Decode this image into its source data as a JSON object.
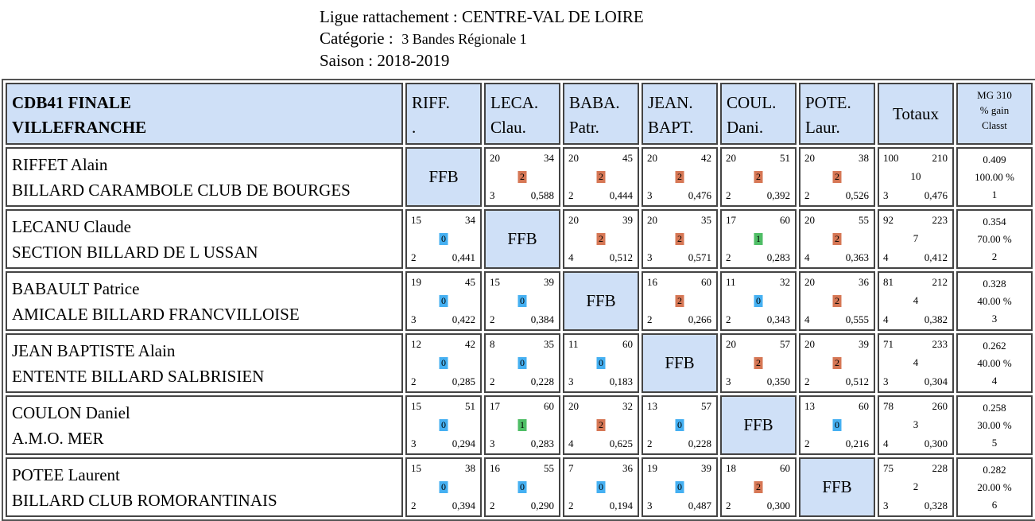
{
  "header": {
    "ligue_label": "Ligue rattachement :",
    "ligue_value": "CENTRE-VAL DE LOIRE",
    "categorie_label": "Catégorie :",
    "categorie_value": "3 Bandes Régionale 1",
    "saison_label": "Saison :",
    "saison_value": "2018-2019"
  },
  "table": {
    "corner_line1": "CDB41 FINALE",
    "corner_line2": "VILLEFRANCHE",
    "columns": [
      {
        "l1": "RIFF.",
        "l2": "."
      },
      {
        "l1": "LECA.",
        "l2": "Clau."
      },
      {
        "l1": "BABA.",
        "l2": "Patr."
      },
      {
        "l1": "JEAN.",
        "l2": "BAPT."
      },
      {
        "l1": "COUL.",
        "l2": "Dani."
      },
      {
        "l1": "POTE.",
        "l2": "Laur."
      }
    ],
    "totals_header": "Totaux",
    "mg_header": {
      "l1": "MG 310",
      "l2": "% gain",
      "l3": "Classt"
    },
    "ffb_label": "FFB",
    "rows": [
      {
        "name": "RIFFET Alain",
        "club": "BILLARD CARAMBOLE CLUB DE BOURGES",
        "cells": [
          null,
          {
            "tl": "20",
            "tr": "34",
            "pts": "2",
            "bl": "3",
            "br": "0,588"
          },
          {
            "tl": "20",
            "tr": "45",
            "pts": "2",
            "bl": "2",
            "br": "0,444"
          },
          {
            "tl": "20",
            "tr": "42",
            "pts": "2",
            "bl": "3",
            "br": "0,476"
          },
          {
            "tl": "20",
            "tr": "51",
            "pts": "2",
            "bl": "2",
            "br": "0,392"
          },
          {
            "tl": "20",
            "tr": "38",
            "pts": "2",
            "bl": "2",
            "br": "0,526"
          }
        ],
        "totals": {
          "tl": "100",
          "tr": "210",
          "mid": "10",
          "bl": "3",
          "br": "0,476"
        },
        "mg": {
          "avg": "0.409",
          "pct": "100.00 %",
          "rank": "1"
        }
      },
      {
        "name": "LECANU Claude",
        "club": "SECTION BILLARD DE L USSAN",
        "cells": [
          {
            "tl": "15",
            "tr": "34",
            "pts": "0",
            "bl": "2",
            "br": "0,441"
          },
          null,
          {
            "tl": "20",
            "tr": "39",
            "pts": "2",
            "bl": "4",
            "br": "0,512"
          },
          {
            "tl": "20",
            "tr": "35",
            "pts": "2",
            "bl": "3",
            "br": "0,571"
          },
          {
            "tl": "17",
            "tr": "60",
            "pts": "1",
            "bl": "2",
            "br": "0,283"
          },
          {
            "tl": "20",
            "tr": "55",
            "pts": "2",
            "bl": "4",
            "br": "0,363"
          }
        ],
        "totals": {
          "tl": "92",
          "tr": "223",
          "mid": "7",
          "bl": "4",
          "br": "0,412"
        },
        "mg": {
          "avg": "0.354",
          "pct": "70.00 %",
          "rank": "2"
        }
      },
      {
        "name": "BABAULT Patrice",
        "club": "AMICALE BILLARD FRANCVILLOISE",
        "cells": [
          {
            "tl": "19",
            "tr": "45",
            "pts": "0",
            "bl": "3",
            "br": "0,422"
          },
          {
            "tl": "15",
            "tr": "39",
            "pts": "0",
            "bl": "2",
            "br": "0,384"
          },
          null,
          {
            "tl": "16",
            "tr": "60",
            "pts": "2",
            "bl": "2",
            "br": "0,266"
          },
          {
            "tl": "11",
            "tr": "32",
            "pts": "0",
            "bl": "2",
            "br": "0,343"
          },
          {
            "tl": "20",
            "tr": "36",
            "pts": "2",
            "bl": "4",
            "br": "0,555"
          }
        ],
        "totals": {
          "tl": "81",
          "tr": "212",
          "mid": "4",
          "bl": "4",
          "br": "0,382"
        },
        "mg": {
          "avg": "0.328",
          "pct": "40.00 %",
          "rank": "3"
        }
      },
      {
        "name": "JEAN BAPTISTE Alain",
        "club": "ENTENTE BILLARD SALBRISIEN",
        "cells": [
          {
            "tl": "12",
            "tr": "42",
            "pts": "0",
            "bl": "2",
            "br": "0,285"
          },
          {
            "tl": "8",
            "tr": "35",
            "pts": "0",
            "bl": "2",
            "br": "0,228"
          },
          {
            "tl": "11",
            "tr": "60",
            "pts": "0",
            "bl": "3",
            "br": "0,183"
          },
          null,
          {
            "tl": "20",
            "tr": "57",
            "pts": "2",
            "bl": "3",
            "br": "0,350"
          },
          {
            "tl": "20",
            "tr": "39",
            "pts": "2",
            "bl": "2",
            "br": "0,512"
          }
        ],
        "totals": {
          "tl": "71",
          "tr": "233",
          "mid": "4",
          "bl": "3",
          "br": "0,304"
        },
        "mg": {
          "avg": "0.262",
          "pct": "40.00 %",
          "rank": "4"
        }
      },
      {
        "name": "COULON Daniel",
        "club": "A.M.O. MER",
        "cells": [
          {
            "tl": "15",
            "tr": "51",
            "pts": "0",
            "bl": "3",
            "br": "0,294"
          },
          {
            "tl": "17",
            "tr": "60",
            "pts": "1",
            "bl": "3",
            "br": "0,283"
          },
          {
            "tl": "20",
            "tr": "32",
            "pts": "2",
            "bl": "4",
            "br": "0,625"
          },
          {
            "tl": "13",
            "tr": "57",
            "pts": "0",
            "bl": "2",
            "br": "0,228"
          },
          null,
          {
            "tl": "13",
            "tr": "60",
            "pts": "0",
            "bl": "2",
            "br": "0,216"
          }
        ],
        "totals": {
          "tl": "78",
          "tr": "260",
          "mid": "3",
          "bl": "4",
          "br": "0,300"
        },
        "mg": {
          "avg": "0.258",
          "pct": "30.00 %",
          "rank": "5"
        }
      },
      {
        "name": "POTEE Laurent",
        "club": "BILLARD CLUB ROMORANTINAIS",
        "cells": [
          {
            "tl": "15",
            "tr": "38",
            "pts": "0",
            "bl": "2",
            "br": "0,394"
          },
          {
            "tl": "16",
            "tr": "55",
            "pts": "0",
            "bl": "2",
            "br": "0,290"
          },
          {
            "tl": "7",
            "tr": "36",
            "pts": "0",
            "bl": "2",
            "br": "0,194"
          },
          {
            "tl": "19",
            "tr": "39",
            "pts": "0",
            "bl": "3",
            "br": "0,487"
          },
          {
            "tl": "18",
            "tr": "60",
            "pts": "2",
            "bl": "2",
            "br": "0,300"
          },
          null
        ],
        "totals": {
          "tl": "75",
          "tr": "228",
          "mid": "2",
          "bl": "3",
          "br": "0,328"
        },
        "mg": {
          "avg": "0.282",
          "pct": "20.00 %",
          "rank": "6"
        }
      }
    ]
  },
  "colors": {
    "header_bg": "#cfe0f7",
    "win": "#d67755",
    "draw": "#4fbe66",
    "loss": "#45b0f2"
  }
}
